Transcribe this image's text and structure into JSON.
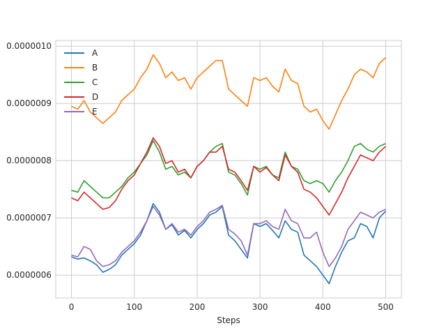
{
  "chart_data": {
    "type": "line",
    "title": "",
    "xlabel": "Steps",
    "ylabel": "",
    "xlim": [
      -25,
      525
    ],
    "ylim": [
      5.6e-07,
      1.01e-06
    ],
    "xticks": [
      0,
      100,
      200,
      300,
      400,
      500
    ],
    "xtick_labels": [
      "0",
      "100",
      "200",
      "300",
      "400",
      "500"
    ],
    "yticks": [
      6e-07,
      7e-07,
      8e-07,
      9e-07,
      1e-06
    ],
    "ytick_labels": [
      "0.0000006",
      "0.0000007",
      "0.0000008",
      "0.0000009",
      "0.0000010"
    ],
    "grid": true,
    "legend_position": "top-left",
    "x": [
      0,
      10,
      20,
      30,
      40,
      50,
      60,
      70,
      80,
      90,
      100,
      110,
      120,
      130,
      140,
      150,
      160,
      170,
      180,
      190,
      200,
      210,
      220,
      230,
      240,
      250,
      260,
      270,
      280,
      290,
      300,
      310,
      320,
      330,
      340,
      350,
      360,
      370,
      380,
      390,
      400,
      410,
      420,
      430,
      440,
      450,
      460,
      470,
      480,
      490,
      500
    ],
    "series": [
      {
        "name": "A",
        "color": "#1f77b4",
        "values": [
          6.32e-07,
          6.28e-07,
          6.3e-07,
          6.25e-07,
          6.18e-07,
          6.05e-07,
          6.1e-07,
          6.18e-07,
          6.35e-07,
          6.45e-07,
          6.55e-07,
          6.7e-07,
          6.95e-07,
          7.25e-07,
          7.1e-07,
          6.8e-07,
          6.88e-07,
          6.7e-07,
          6.78e-07,
          6.65e-07,
          6.8e-07,
          6.9e-07,
          7.05e-07,
          7.1e-07,
          7.2e-07,
          6.7e-07,
          6.6e-07,
          6.45e-07,
          6.3e-07,
          6.9e-07,
          6.85e-07,
          6.9e-07,
          6.78e-07,
          6.65e-07,
          6.95e-07,
          6.8e-07,
          6.75e-07,
          6.35e-07,
          6.25e-07,
          6.15e-07,
          6e-07,
          5.85e-07,
          6.15e-07,
          6.4e-07,
          6.6e-07,
          6.65e-07,
          6.9e-07,
          6.85e-07,
          6.65e-07,
          7e-07,
          7.12e-07
        ]
      },
      {
        "name": "B",
        "color": "#ff7f0e",
        "values": [
          8.95e-07,
          8.9e-07,
          9.05e-07,
          8.85e-07,
          8.75e-07,
          8.65e-07,
          8.75e-07,
          8.85e-07,
          9.05e-07,
          9.15e-07,
          9.25e-07,
          9.45e-07,
          9.6e-07,
          9.85e-07,
          9.7e-07,
          9.45e-07,
          9.55e-07,
          9.4e-07,
          9.45e-07,
          9.25e-07,
          9.45e-07,
          9.55e-07,
          9.65e-07,
          9.75e-07,
          9.75e-07,
          9.25e-07,
          9.15e-07,
          9.05e-07,
          8.95e-07,
          9.45e-07,
          9.4e-07,
          9.45e-07,
          9.3e-07,
          9.2e-07,
          9.6e-07,
          9.4e-07,
          9.35e-07,
          8.95e-07,
          8.85e-07,
          8.9e-07,
          8.7e-07,
          8.55e-07,
          8.8e-07,
          9.05e-07,
          9.25e-07,
          9.5e-07,
          9.6e-07,
          9.55e-07,
          9.45e-07,
          9.7e-07,
          9.8e-07
        ]
      },
      {
        "name": "C",
        "color": "#2ca02c",
        "values": [
          7.48e-07,
          7.45e-07,
          7.65e-07,
          7.55e-07,
          7.45e-07,
          7.35e-07,
          7.35e-07,
          7.45e-07,
          7.55e-07,
          7.7e-07,
          7.8e-07,
          7.95e-07,
          8.1e-07,
          8.35e-07,
          8.15e-07,
          7.85e-07,
          7.9e-07,
          7.75e-07,
          7.8e-07,
          7.7e-07,
          7.9e-07,
          8e-07,
          8.15e-07,
          8.25e-07,
          8.3e-07,
          7.8e-07,
          7.75e-07,
          7.6e-07,
          7.4e-07,
          7.9e-07,
          7.85e-07,
          7.9e-07,
          7.75e-07,
          7.7e-07,
          8.15e-07,
          7.9e-07,
          7.85e-07,
          7.65e-07,
          7.6e-07,
          7.65e-07,
          7.6e-07,
          7.45e-07,
          7.65e-07,
          7.8e-07,
          8e-07,
          8.25e-07,
          8.3e-07,
          8.2e-07,
          8.15e-07,
          8.25e-07,
          8.3e-07
        ]
      },
      {
        "name": "D",
        "color": "#d62728",
        "values": [
          7.35e-07,
          7.3e-07,
          7.45e-07,
          7.35e-07,
          7.25e-07,
          7.15e-07,
          7.18e-07,
          7.3e-07,
          7.5e-07,
          7.65e-07,
          7.75e-07,
          7.95e-07,
          8.15e-07,
          8.4e-07,
          8.25e-07,
          7.95e-07,
          8e-07,
          7.8e-07,
          7.85e-07,
          7.7e-07,
          7.9e-07,
          8e-07,
          8.15e-07,
          8.15e-07,
          8.25e-07,
          7.85e-07,
          7.8e-07,
          7.65e-07,
          7.48e-07,
          7.9e-07,
          7.8e-07,
          7.88e-07,
          7.75e-07,
          7.65e-07,
          8.1e-07,
          7.9e-07,
          7.8e-07,
          7.5e-07,
          7.45e-07,
          7.35e-07,
          7.2e-07,
          7.05e-07,
          7.25e-07,
          7.45e-07,
          7.7e-07,
          7.9e-07,
          8.1e-07,
          8.05e-07,
          8e-07,
          8.15e-07,
          8.25e-07
        ]
      },
      {
        "name": "E",
        "color": "#9467bd",
        "values": [
          6.35e-07,
          6.32e-07,
          6.5e-07,
          6.45e-07,
          6.25e-07,
          6.15e-07,
          6.18e-07,
          6.25e-07,
          6.4e-07,
          6.5e-07,
          6.6e-07,
          6.75e-07,
          6.95e-07,
          7.2e-07,
          7.05e-07,
          6.8e-07,
          6.9e-07,
          6.75e-07,
          6.8e-07,
          6.7e-07,
          6.85e-07,
          6.95e-07,
          7.1e-07,
          7.15e-07,
          7.22e-07,
          6.8e-07,
          6.72e-07,
          6.6e-07,
          6.35e-07,
          6.9e-07,
          6.9e-07,
          6.95e-07,
          6.85e-07,
          6.8e-07,
          7.15e-07,
          6.95e-07,
          6.9e-07,
          6.65e-07,
          6.65e-07,
          6.75e-07,
          6.4e-07,
          6.15e-07,
          6.3e-07,
          6.5e-07,
          6.8e-07,
          6.95e-07,
          7.1e-07,
          7.05e-07,
          7e-07,
          7.1e-07,
          7.15e-07
        ]
      }
    ]
  }
}
